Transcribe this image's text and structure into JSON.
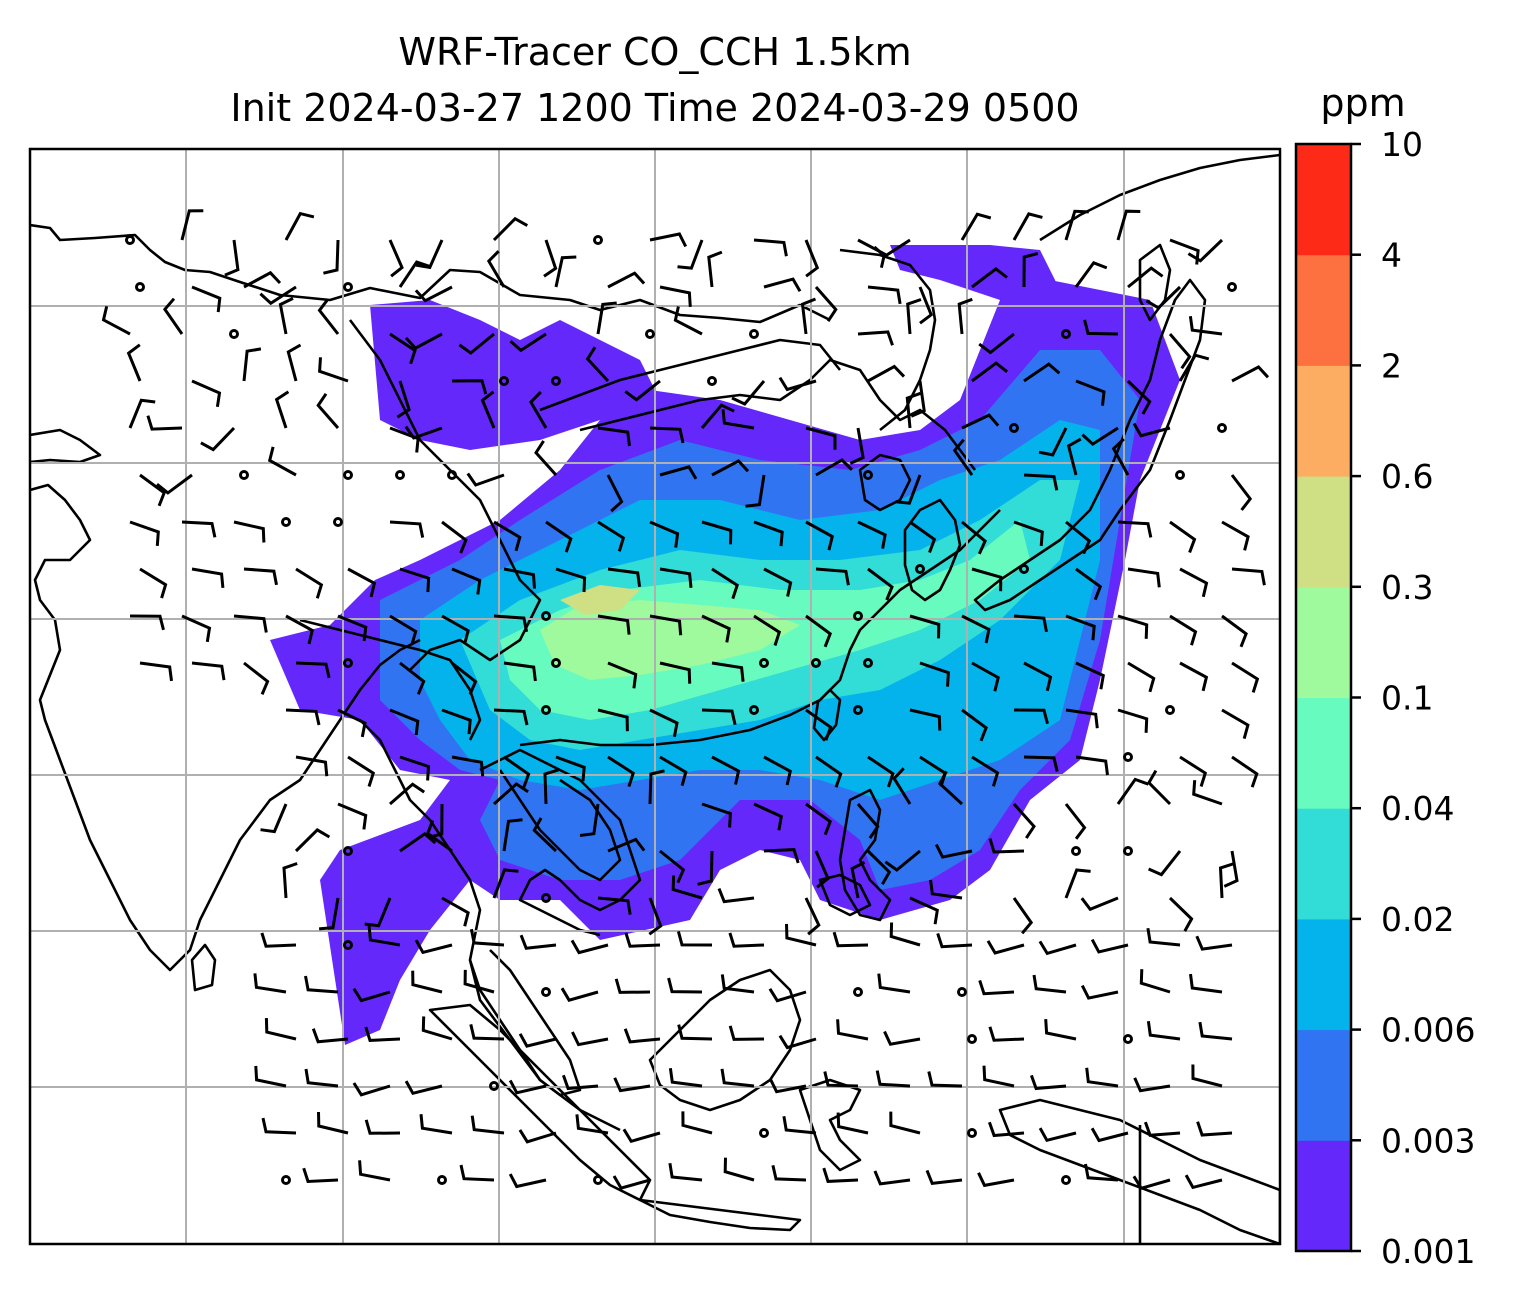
{
  "title": {
    "line1": "WRF-Tracer CO_CCH 1.5km",
    "line2": "Init 2024-03-27 1200 Time 2024-03-29 0500"
  },
  "colorbar": {
    "unit": "ppm",
    "ticks": [
      "0.001",
      "0.003",
      "0.006",
      "0.02",
      "0.04",
      "0.1",
      "0.3",
      "0.6",
      "2",
      "4",
      "10"
    ],
    "colors": [
      "#6528fa",
      "#3174f2",
      "#05b3ec",
      "#31ddd6",
      "#68fbbf",
      "#9efa9c",
      "#cedf84",
      "#fdad62",
      "#fd7040",
      "#fc2a16"
    ]
  },
  "map": {
    "gridlines": true,
    "field": "CO_CCH tracer concentration",
    "overlay": "wind barbs"
  }
}
